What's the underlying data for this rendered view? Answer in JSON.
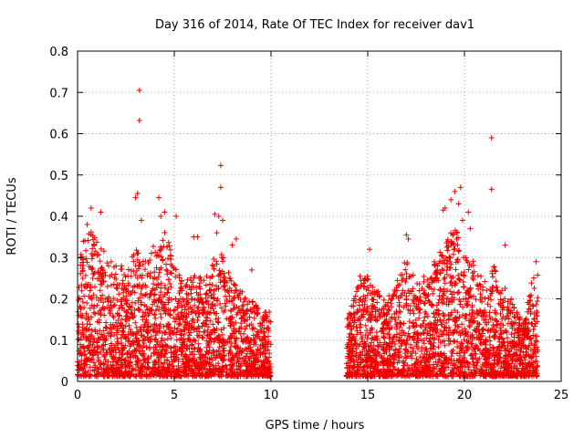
{
  "chart_data": {
    "type": "scatter",
    "title": "Day 316 of 2014, Rate Of TEC Index for receiver dav1",
    "xlabel": "GPS time / hours",
    "ylabel": "ROTI / TECUs",
    "xlim": [
      0,
      25
    ],
    "ylim": [
      0,
      0.8
    ],
    "xticks": [
      0,
      5,
      10,
      15,
      20,
      25
    ],
    "yticks": [
      0,
      0.1,
      0.2,
      0.3,
      0.4,
      0.5,
      0.6,
      0.7,
      0.8
    ],
    "grid": true,
    "marker": "+",
    "color": "#ee0000",
    "segments": [
      {
        "x": [
          0.0,
          10.0
        ],
        "envelope": [
          [
            0.0,
            0.26
          ],
          [
            0.3,
            0.34
          ],
          [
            0.7,
            0.38
          ],
          [
            1.2,
            0.33
          ],
          [
            1.8,
            0.3
          ],
          [
            2.5,
            0.28
          ],
          [
            3.0,
            0.32
          ],
          [
            3.5,
            0.3
          ],
          [
            4.0,
            0.34
          ],
          [
            4.5,
            0.38
          ],
          [
            5.0,
            0.28
          ],
          [
            5.5,
            0.24
          ],
          [
            6.0,
            0.26
          ],
          [
            6.5,
            0.25
          ],
          [
            7.0,
            0.3
          ],
          [
            7.5,
            0.31
          ],
          [
            8.0,
            0.24
          ],
          [
            8.5,
            0.22
          ],
          [
            9.0,
            0.2
          ],
          [
            9.5,
            0.18
          ],
          [
            10.0,
            0.17
          ]
        ]
      },
      {
        "x": [
          13.9,
          23.8
        ],
        "envelope": [
          [
            13.9,
            0.15
          ],
          [
            14.5,
            0.24
          ],
          [
            15.0,
            0.26
          ],
          [
            15.5,
            0.22
          ],
          [
            16.0,
            0.2
          ],
          [
            16.5,
            0.24
          ],
          [
            17.0,
            0.3
          ],
          [
            17.5,
            0.24
          ],
          [
            18.0,
            0.26
          ],
          [
            18.5,
            0.3
          ],
          [
            19.0,
            0.33
          ],
          [
            19.5,
            0.38
          ],
          [
            20.0,
            0.3
          ],
          [
            20.5,
            0.3
          ],
          [
            21.0,
            0.24
          ],
          [
            21.5,
            0.28
          ],
          [
            22.0,
            0.24
          ],
          [
            22.5,
            0.2
          ],
          [
            23.0,
            0.14
          ],
          [
            23.5,
            0.25
          ],
          [
            23.8,
            0.28
          ]
        ]
      }
    ],
    "outliers": [
      {
        "x": 3.2,
        "y": 0.705
      },
      {
        "x": 3.2,
        "y": 0.632
      },
      {
        "x": 3.1,
        "y": 0.455
      },
      {
        "x": 3.0,
        "y": 0.445
      },
      {
        "x": 3.3,
        "y": 0.39
      },
      {
        "x": 4.2,
        "y": 0.445
      },
      {
        "x": 4.5,
        "y": 0.41
      },
      {
        "x": 4.3,
        "y": 0.4
      },
      {
        "x": 5.1,
        "y": 0.4
      },
      {
        "x": 0.7,
        "y": 0.42
      },
      {
        "x": 1.2,
        "y": 0.41
      },
      {
        "x": 0.5,
        "y": 0.38
      },
      {
        "x": 7.4,
        "y": 0.523
      },
      {
        "x": 7.4,
        "y": 0.47
      },
      {
        "x": 7.3,
        "y": 0.4
      },
      {
        "x": 7.1,
        "y": 0.405
      },
      {
        "x": 7.5,
        "y": 0.39
      },
      {
        "x": 7.2,
        "y": 0.36
      },
      {
        "x": 8.2,
        "y": 0.345
      },
      {
        "x": 6.2,
        "y": 0.35
      },
      {
        "x": 6.0,
        "y": 0.35
      },
      {
        "x": 8.0,
        "y": 0.33
      },
      {
        "x": 9.0,
        "y": 0.27
      },
      {
        "x": 21.4,
        "y": 0.59
      },
      {
        "x": 21.4,
        "y": 0.465
      },
      {
        "x": 19.8,
        "y": 0.47
      },
      {
        "x": 19.5,
        "y": 0.46
      },
      {
        "x": 19.3,
        "y": 0.44
      },
      {
        "x": 19.0,
        "y": 0.42
      },
      {
        "x": 18.9,
        "y": 0.415
      },
      {
        "x": 19.7,
        "y": 0.43
      },
      {
        "x": 20.2,
        "y": 0.41
      },
      {
        "x": 19.9,
        "y": 0.39
      },
      {
        "x": 20.3,
        "y": 0.37
      },
      {
        "x": 22.1,
        "y": 0.33
      },
      {
        "x": 17.0,
        "y": 0.355
      },
      {
        "x": 17.1,
        "y": 0.345
      },
      {
        "x": 15.1,
        "y": 0.32
      },
      {
        "x": 14.6,
        "y": 0.255
      },
      {
        "x": 23.7,
        "y": 0.29
      }
    ]
  }
}
